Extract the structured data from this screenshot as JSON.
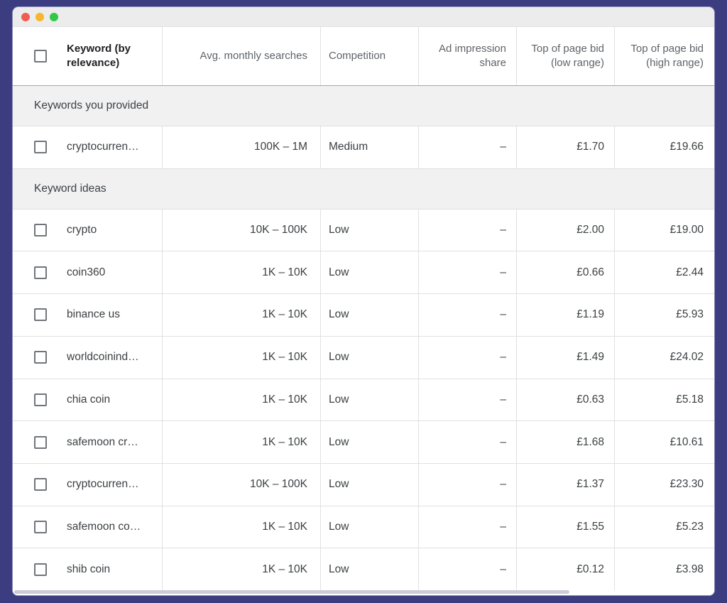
{
  "window": {
    "titlebar_buttons": [
      {
        "name": "close",
        "color": "#f05c51"
      },
      {
        "name": "minimize",
        "color": "#f6b62d"
      },
      {
        "name": "zoom",
        "color": "#33c748"
      }
    ]
  },
  "colors": {
    "frame_background": "#3b3d80",
    "titlebar": "#ececec",
    "section_row_background": "#f1f1f2",
    "header_text": "#5f6368",
    "body_text": "#3c4043",
    "divider": "#e0e0e0"
  },
  "table": {
    "columns": [
      {
        "id": "keyword",
        "label": "Keyword (by relevance)"
      },
      {
        "id": "avg_monthly_searches",
        "label": "Avg. monthly searches"
      },
      {
        "id": "competition",
        "label": "Competition"
      },
      {
        "id": "ad_impression_share",
        "label": "Ad impression share"
      },
      {
        "id": "top_of_page_bid_low",
        "label": "Top of page bid (low range)"
      },
      {
        "id": "top_of_page_bid_high",
        "label": "Top of page bid (high range)"
      }
    ],
    "sections": [
      {
        "label": "Keywords you provided",
        "rows": [
          {
            "keyword": "cryptocurren…",
            "avg_monthly_searches": "100K – 1M",
            "competition": "Medium",
            "ad_impression_share": "–",
            "top_of_page_bid_low": "£1.70",
            "top_of_page_bid_high": "£19.66",
            "checked": false
          }
        ]
      },
      {
        "label": "Keyword ideas",
        "rows": [
          {
            "keyword": "crypto",
            "avg_monthly_searches": "10K – 100K",
            "competition": "Low",
            "ad_impression_share": "–",
            "top_of_page_bid_low": "£2.00",
            "top_of_page_bid_high": "£19.00",
            "checked": false
          },
          {
            "keyword": "coin360",
            "avg_monthly_searches": "1K – 10K",
            "competition": "Low",
            "ad_impression_share": "–",
            "top_of_page_bid_low": "£0.66",
            "top_of_page_bid_high": "£2.44",
            "checked": false
          },
          {
            "keyword": "binance us",
            "avg_monthly_searches": "1K – 10K",
            "competition": "Low",
            "ad_impression_share": "–",
            "top_of_page_bid_low": "£1.19",
            "top_of_page_bid_high": "£5.93",
            "checked": false
          },
          {
            "keyword": "worldcoinind…",
            "avg_monthly_searches": "1K – 10K",
            "competition": "Low",
            "ad_impression_share": "–",
            "top_of_page_bid_low": "£1.49",
            "top_of_page_bid_high": "£24.02",
            "checked": false
          },
          {
            "keyword": "chia coin",
            "avg_monthly_searches": "1K – 10K",
            "competition": "Low",
            "ad_impression_share": "–",
            "top_of_page_bid_low": "£0.63",
            "top_of_page_bid_high": "£5.18",
            "checked": false
          },
          {
            "keyword": "safemoon cr…",
            "avg_monthly_searches": "1K – 10K",
            "competition": "Low",
            "ad_impression_share": "–",
            "top_of_page_bid_low": "£1.68",
            "top_of_page_bid_high": "£10.61",
            "checked": false
          },
          {
            "keyword": "cryptocurren…",
            "avg_monthly_searches": "10K – 100K",
            "competition": "Low",
            "ad_impression_share": "–",
            "top_of_page_bid_low": "£1.37",
            "top_of_page_bid_high": "£23.30",
            "checked": false
          },
          {
            "keyword": "safemoon co…",
            "avg_monthly_searches": "1K – 10K",
            "competition": "Low",
            "ad_impression_share": "–",
            "top_of_page_bid_low": "£1.55",
            "top_of_page_bid_high": "£5.23",
            "checked": false
          },
          {
            "keyword": "shib coin",
            "avg_monthly_searches": "1K – 10K",
            "competition": "Low",
            "ad_impression_share": "–",
            "top_of_page_bid_low": "£0.12",
            "top_of_page_bid_high": "£3.98",
            "checked": false
          }
        ]
      }
    ]
  }
}
